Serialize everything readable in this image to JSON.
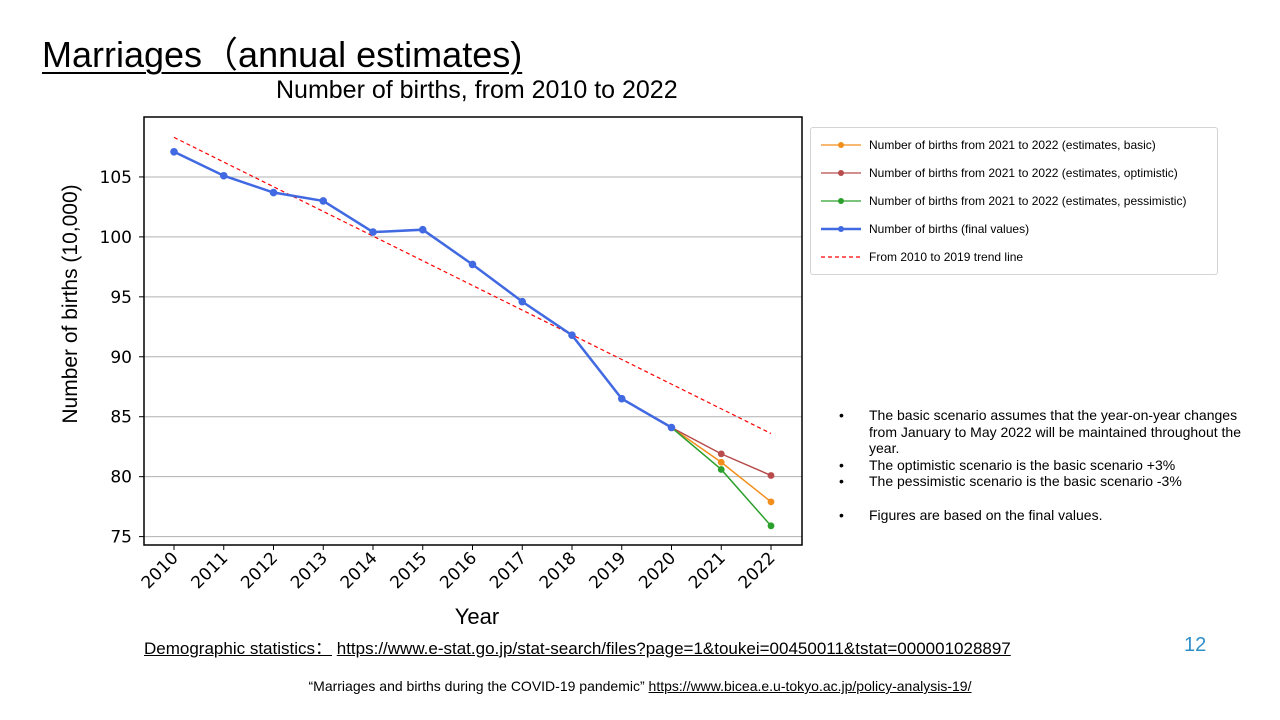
{
  "slide": {
    "title": "Marriages（annual estimates)",
    "page_number": "12"
  },
  "legend": {
    "items": [
      {
        "label": "Number of births from 2021 to 2022 (estimates, basic)",
        "color": "#f28e1c",
        "style": "thin-marker"
      },
      {
        "label": "Number of births from 2021 to 2022 (estimates, optimistic)",
        "color": "#b84c4c",
        "style": "thin-marker"
      },
      {
        "label": "Number of births from 2021 to 2022 (estimates, pessimistic)",
        "color": "#2ca02c",
        "style": "thin-marker"
      },
      {
        "label": "Number of births (final values)",
        "color": "#4169e1",
        "style": "thick-marker"
      },
      {
        "label": "From 2010 to 2019 trend line",
        "color": "#ff0000",
        "style": "dashed"
      }
    ]
  },
  "notes": [
    "The basic scenario assumes that the year-on-year changes from January to May 2022 will be maintained throughout the year.",
    "The optimistic scenario is the basic scenario +3%",
    "The pessimistic scenario is the basic scenario -3%",
    "Figures are based on the final values."
  ],
  "source": {
    "prefix": "Demographic statistics：",
    "url": "https://www.e-stat.go.jp/stat-search/files?page=1&toukei=00450011&tstat=000001028897"
  },
  "footnote": {
    "text": "“Marriages and births during the COVID-19 pandemic”",
    "url": "https://www.bicea.e.u-tokyo.ac.jp/policy-analysis-19/"
  },
  "chart_data": {
    "type": "line",
    "title": "Number of births, from 2010 to 2022",
    "xlabel": "Year",
    "ylabel": "Number of births (10,000)",
    "ylim": [
      74.3,
      110
    ],
    "yticks": [
      75,
      80,
      85,
      90,
      95,
      100,
      105
    ],
    "grid": "horizontal",
    "legend_position": "right",
    "x": [
      "2010",
      "2011",
      "2012",
      "2013",
      "2014",
      "2015",
      "2016",
      "2017",
      "2018",
      "2019",
      "2020",
      "2021",
      "2022"
    ],
    "series": [
      {
        "name": "Number of births (final values)",
        "color": "#4169e1",
        "x": [
          "2010",
          "2011",
          "2012",
          "2013",
          "2014",
          "2015",
          "2016",
          "2017",
          "2018",
          "2019",
          "2020"
        ],
        "values": [
          107.1,
          105.1,
          103.7,
          103.0,
          100.4,
          100.6,
          97.7,
          94.6,
          91.8,
          86.5,
          84.1
        ]
      },
      {
        "name": "Number of births from 2021 to 2022 (estimates, basic)",
        "color": "#f28e1c",
        "x": [
          "2020",
          "2021",
          "2022"
        ],
        "values": [
          84.1,
          81.2,
          77.9
        ]
      },
      {
        "name": "Number of births from 2021 to 2022 (estimates, optimistic)",
        "color": "#b84c4c",
        "x": [
          "2020",
          "2021",
          "2022"
        ],
        "values": [
          84.1,
          81.9,
          80.1
        ]
      },
      {
        "name": "Number of births from 2021 to 2022 (estimates, pessimistic)",
        "color": "#2ca02c",
        "x": [
          "2020",
          "2021",
          "2022"
        ],
        "values": [
          84.1,
          80.6,
          75.9
        ]
      },
      {
        "name": "From 2010 to 2019 trend line",
        "color": "#ff0000",
        "dashed": true,
        "x": [
          "2010",
          "2022"
        ],
        "values": [
          108.3,
          83.6
        ]
      }
    ]
  }
}
